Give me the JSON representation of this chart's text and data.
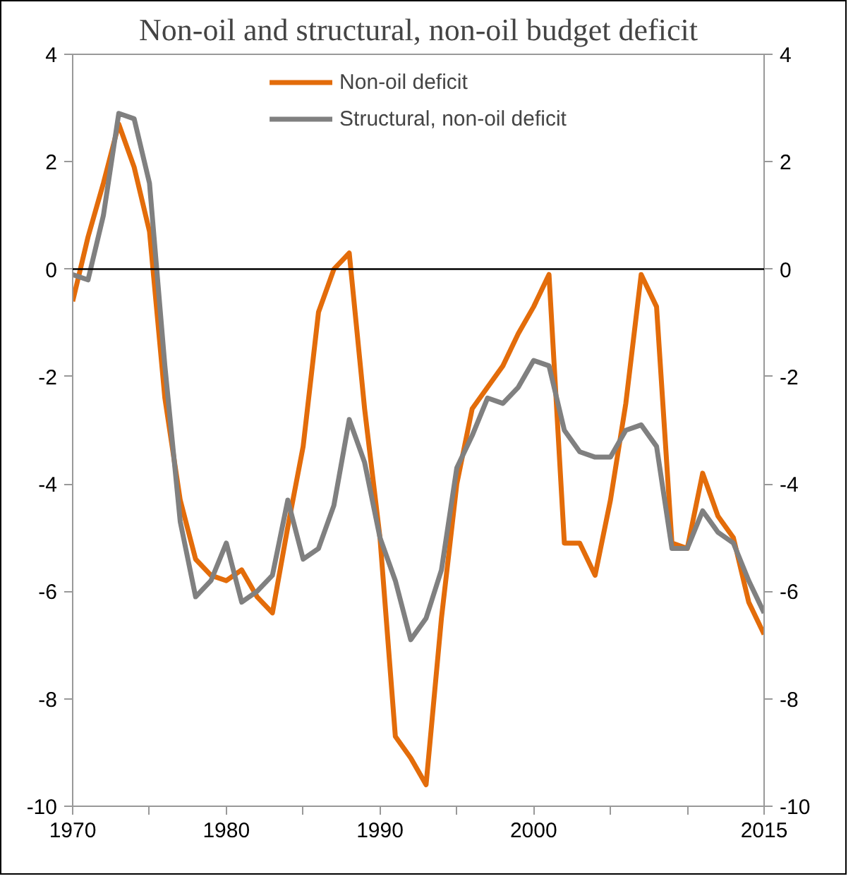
{
  "chart_data": {
    "type": "line",
    "title": "Non-oil and structural, non-oil budget deficit",
    "x": [
      1970,
      1971,
      1972,
      1973,
      1974,
      1975,
      1976,
      1977,
      1978,
      1979,
      1980,
      1981,
      1982,
      1983,
      1984,
      1985,
      1986,
      1987,
      1988,
      1989,
      1990,
      1991,
      1992,
      1993,
      1994,
      1995,
      1996,
      1997,
      1998,
      1999,
      2000,
      2001,
      2002,
      2003,
      2004,
      2005,
      2006,
      2007,
      2008,
      2009,
      2010,
      2011,
      2012,
      2013,
      2014,
      2015
    ],
    "series": [
      {
        "name": "Non-oil deficit",
        "color": "#e36c0a",
        "values": [
          -0.6,
          0.6,
          1.6,
          2.7,
          1.9,
          0.7,
          -2.4,
          -4.3,
          -5.4,
          -5.7,
          -5.8,
          -5.6,
          -6.1,
          -6.4,
          -4.8,
          -3.3,
          -0.8,
          0.0,
          0.3,
          -2.6,
          -5.0,
          -8.7,
          -9.1,
          -9.6,
          -6.5,
          -4.0,
          -2.6,
          -2.2,
          -1.8,
          -1.2,
          -0.7,
          -0.1,
          -5.1,
          -5.1,
          -5.7,
          -4.3,
          -2.5,
          -0.1,
          -0.7,
          -5.1,
          -5.2,
          -3.8,
          -4.6,
          -5.0,
          -6.2,
          -6.8
        ]
      },
      {
        "name": "Structural, non-oil deficit",
        "color": "#808080",
        "values": [
          -0.1,
          -0.2,
          1.0,
          2.9,
          2.8,
          1.6,
          -1.8,
          -4.7,
          -6.1,
          -5.8,
          -5.1,
          -6.2,
          -6.0,
          -5.7,
          -4.3,
          -5.4,
          -5.2,
          -4.4,
          -2.8,
          -3.6,
          -5.0,
          -5.8,
          -6.9,
          -6.5,
          -5.6,
          -3.7,
          -3.1,
          -2.4,
          -2.5,
          -2.2,
          -1.7,
          -1.8,
          -3.0,
          -3.4,
          -3.5,
          -3.5,
          -3.0,
          -2.9,
          -3.3,
          -5.2,
          -5.2,
          -4.5,
          -4.9,
          -5.1,
          -5.8,
          -6.4
        ]
      }
    ],
    "xlim": [
      1970,
      2015
    ],
    "xticks": [
      1970,
      {
        "value": 1975,
        "label": null
      },
      1980,
      {
        "value": 1985,
        "label": null
      },
      1990,
      {
        "value": 1995,
        "label": null
      },
      2000,
      {
        "value": 2005,
        "label": null
      },
      {
        "value": 2010,
        "label": null
      },
      2015
    ],
    "ylim": [
      -10,
      4
    ],
    "yticks": [
      -10,
      -8,
      -6,
      -4,
      -2,
      0,
      2,
      4
    ],
    "y2lim": [
      -10,
      4
    ],
    "y2ticks": [
      -10,
      -8,
      -6,
      -4,
      -2,
      0,
      2,
      4
    ],
    "ref_lines": [
      {
        "axis": "y",
        "value": 0,
        "color": "#000000"
      }
    ],
    "grid": false,
    "legend": "top",
    "marker": "none",
    "line_style": "solid"
  }
}
